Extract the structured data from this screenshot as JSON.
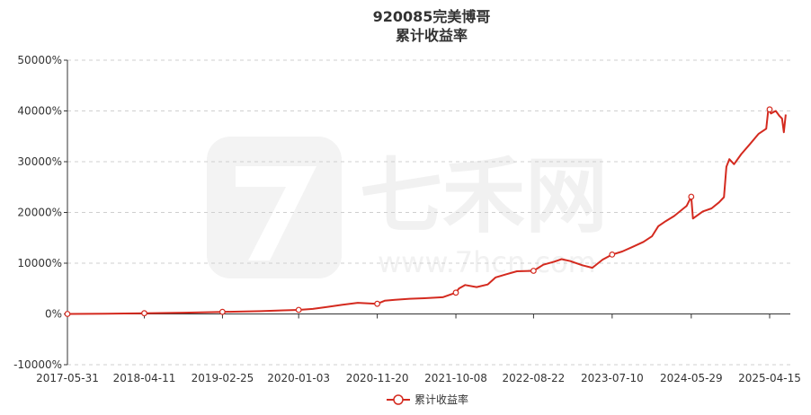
{
  "title": "920085完美博哥",
  "subtitle": "累计收益率",
  "legend": {
    "label": "累计收益率",
    "position": "bottom-center"
  },
  "watermark": {
    "brand": "七禾网",
    "url": "www.7hcn.com"
  },
  "colors": {
    "series": "#d42a1f",
    "marker_fill": "#ffffff",
    "grid": "#cfcfcf",
    "text": "#333333",
    "watermark": "#f1f1f1"
  },
  "chart_data": {
    "type": "line",
    "title": "920085完美博哥",
    "subtitle": "累计收益率",
    "xlabel": "",
    "ylabel": "",
    "x_ticks": [
      "2017-05-31",
      "2018-04-11",
      "2019-02-25",
      "2020-01-03",
      "2020-11-20",
      "2021-10-08",
      "2022-08-22",
      "2023-07-10",
      "2024-05-29",
      "2025-04-15"
    ],
    "y_ticks": [
      "50000%",
      "40000%",
      "30000%",
      "20000%",
      "10000%",
      "0%",
      "-10000%"
    ],
    "ylim": [
      -10000,
      50000
    ],
    "y_unit": "%",
    "grid": true,
    "series": [
      {
        "name": "累计收益率",
        "points": [
          [
            "2017-05-31",
            0
          ],
          [
            "2017-11-01",
            50
          ],
          [
            "2018-04-11",
            150
          ],
          [
            "2018-09-20",
            250
          ],
          [
            "2019-02-25",
            400
          ],
          [
            "2019-08-01",
            550
          ],
          [
            "2019-11-01",
            700
          ],
          [
            "2020-01-03",
            800
          ],
          [
            "2020-03-01",
            1000
          ],
          [
            "2020-05-01",
            1400
          ],
          [
            "2020-07-01",
            1800
          ],
          [
            "2020-09-01",
            2200
          ],
          [
            "2020-11-20",
            2000
          ],
          [
            "2020-12-20",
            2600
          ],
          [
            "2021-02-01",
            2800
          ],
          [
            "2021-04-01",
            3000
          ],
          [
            "2021-06-01",
            3100
          ],
          [
            "2021-08-15",
            3300
          ],
          [
            "2021-10-08",
            4200
          ],
          [
            "2021-10-20",
            5000
          ],
          [
            "2021-11-15",
            5700
          ],
          [
            "2022-01-01",
            5300
          ],
          [
            "2022-02-15",
            5800
          ],
          [
            "2022-03-20",
            7200
          ],
          [
            "2022-05-01",
            7800
          ],
          [
            "2022-06-15",
            8400
          ],
          [
            "2022-08-22",
            8500
          ],
          [
            "2022-10-01",
            9700
          ],
          [
            "2022-11-15",
            10300
          ],
          [
            "2022-12-15",
            10800
          ],
          [
            "2023-01-20",
            10400
          ],
          [
            "2023-03-10",
            9600
          ],
          [
            "2023-04-20",
            9100
          ],
          [
            "2023-06-01",
            10700
          ],
          [
            "2023-07-10",
            11700
          ],
          [
            "2023-08-20",
            12300
          ],
          [
            "2023-10-01",
            13200
          ],
          [
            "2023-11-15",
            14200
          ],
          [
            "2023-12-20",
            15300
          ],
          [
            "2024-01-15",
            17300
          ],
          [
            "2024-02-15",
            18300
          ],
          [
            "2024-03-20",
            19300
          ],
          [
            "2024-05-10",
            21300
          ],
          [
            "2024-05-29",
            23100
          ],
          [
            "2024-06-05",
            18800
          ],
          [
            "2024-07-15",
            20200
          ],
          [
            "2024-08-20",
            20800
          ],
          [
            "2024-09-20",
            22000
          ],
          [
            "2024-10-10",
            23000
          ],
          [
            "2024-10-20",
            29000
          ],
          [
            "2024-11-01",
            30500
          ],
          [
            "2024-11-20",
            29500
          ],
          [
            "2024-12-20",
            31500
          ],
          [
            "2025-01-25",
            33500
          ],
          [
            "2025-03-01",
            35500
          ],
          [
            "2025-04-01",
            36500
          ],
          [
            "2025-04-10",
            40400
          ],
          [
            "2025-04-20",
            39500
          ],
          [
            "2025-05-10",
            40000
          ],
          [
            "2025-05-25",
            39000
          ],
          [
            "2025-06-05",
            38500
          ],
          [
            "2025-06-12",
            35800
          ],
          [
            "2025-06-20",
            39300
          ]
        ],
        "markers": [
          [
            "2017-05-31",
            0
          ],
          [
            "2018-04-11",
            150
          ],
          [
            "2019-02-25",
            400
          ],
          [
            "2020-01-03",
            800
          ],
          [
            "2020-11-20",
            2000
          ],
          [
            "2021-10-08",
            4200
          ],
          [
            "2022-08-22",
            8500
          ],
          [
            "2023-07-10",
            11700
          ],
          [
            "2024-05-29",
            23100
          ],
          [
            "2025-04-15",
            40300
          ]
        ]
      }
    ]
  }
}
